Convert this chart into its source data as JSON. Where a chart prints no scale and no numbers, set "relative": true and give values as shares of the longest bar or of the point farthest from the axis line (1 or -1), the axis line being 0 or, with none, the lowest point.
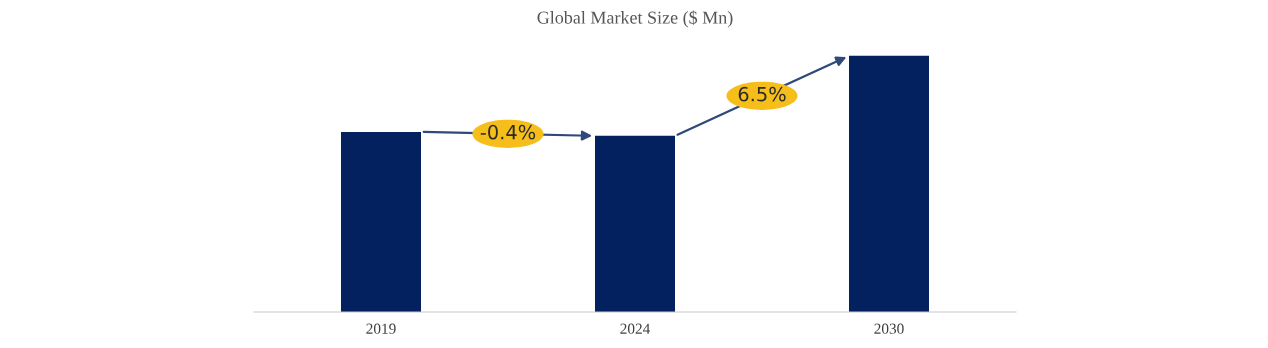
{
  "chart_data": {
    "type": "bar",
    "title": "Global Market Size ($ Mn)",
    "categories": [
      "2019",
      "2024",
      "2030"
    ],
    "values": [
      0.703,
      0.6875,
      1
    ],
    "color": "#03215e",
    "relative": true,
    "grid": false,
    "legend": false,
    "annotations": [
      "-0.4%",
      "6.5%"
    ]
  }
}
